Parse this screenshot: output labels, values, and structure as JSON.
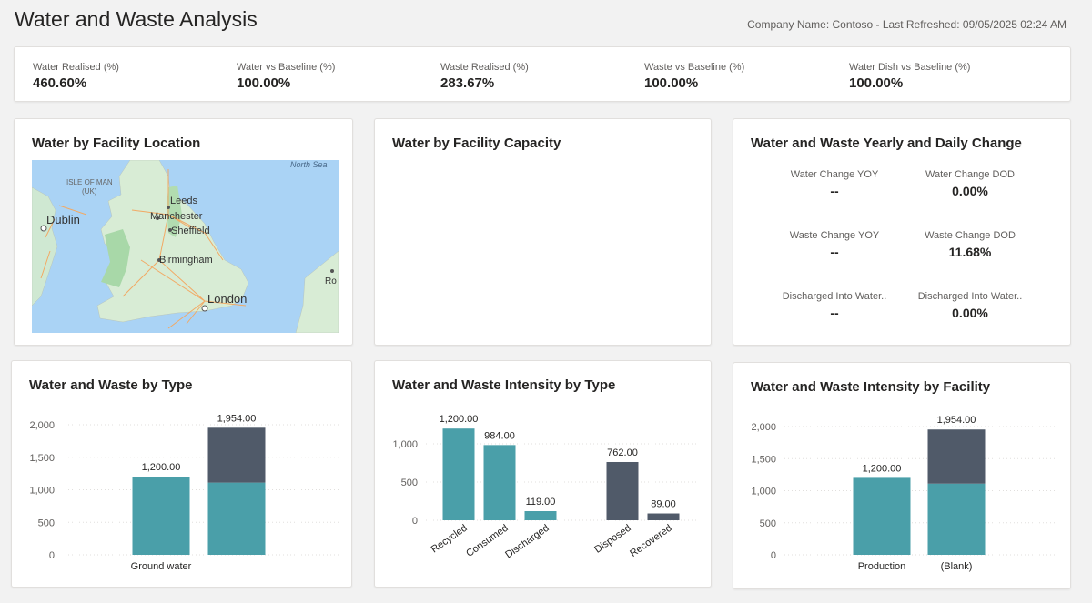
{
  "header": {
    "title": "Water and Waste Analysis",
    "meta": "Company Name: Contoso - Last Refreshed: 09/05/2025 02:24 AM"
  },
  "kpis": [
    {
      "label": "Water Realised (%)",
      "value": "460.60%"
    },
    {
      "label": "Water vs Baseline (%)",
      "value": "100.00%"
    },
    {
      "label": "Waste Realised (%)",
      "value": "283.67%"
    },
    {
      "label": "Waste vs Baseline (%)",
      "value": "100.00%"
    },
    {
      "label": "Water Dish vs Baseline (%)",
      "value": "100.00%"
    }
  ],
  "map_card": {
    "title": "Water by Facility Location",
    "labels": {
      "north_sea": "North Sea",
      "isle_of_man_1": "ISLE OF MAN",
      "isle_of_man_2": "(UK)",
      "dublin": "Dublin",
      "leeds": "Leeds",
      "manchester": "Manchester",
      "sheffield": "Sheffield",
      "birmingham": "Birmingham",
      "london": "London",
      "ro": "Ro"
    }
  },
  "capacity_card": {
    "title": "Water by Facility Capacity"
  },
  "change_card": {
    "title": "Water and Waste Yearly and Daily Change",
    "items": [
      {
        "label": "Water Change YOY",
        "value": "--"
      },
      {
        "label": "Water Change DOD",
        "value": "0.00%"
      },
      {
        "label": "Waste Change YOY",
        "value": "--"
      },
      {
        "label": "Waste Change DOD",
        "value": "11.68%"
      },
      {
        "label": "Discharged Into Water..",
        "value": "--"
      },
      {
        "label": "Discharged Into Water..",
        "value": "0.00%"
      }
    ]
  },
  "colors": {
    "teal": "#4a9fa9",
    "slate": "#505a69",
    "grid": "#e1dfdd"
  },
  "chart_data": [
    {
      "type": "bar",
      "title": "Water and Waste by Type",
      "ylim": [
        0,
        2000
      ],
      "yticks": [
        "0",
        "500",
        "1,000",
        "1,500",
        "2,000"
      ],
      "bars": [
        {
          "category": "Ground water",
          "segments": [
            1200
          ],
          "label": "1,200.00"
        },
        {
          "category": "",
          "segments": [
            1110,
            844
          ],
          "label": "1,954.00"
        }
      ]
    },
    {
      "type": "bar",
      "title": "Water and Waste Intensity by Type",
      "ylim": [
        0,
        1250
      ],
      "yticks": [
        "0",
        "500",
        "1,000"
      ],
      "bars": [
        {
          "category": "Recycled",
          "value": 1200,
          "label": "1,200.00",
          "color": "teal"
        },
        {
          "category": "Consumed",
          "value": 984,
          "label": "984.00",
          "color": "teal"
        },
        {
          "category": "Discharged",
          "value": 119,
          "label": "119.00",
          "color": "teal"
        },
        {
          "category": "Disposed",
          "value": 762,
          "label": "762.00",
          "color": "slate"
        },
        {
          "category": "Recovered",
          "value": 89,
          "label": "89.00",
          "color": "slate"
        }
      ]
    },
    {
      "type": "bar",
      "title": "Water and Waste Intensity by Facility",
      "ylim": [
        0,
        2000
      ],
      "yticks": [
        "0",
        "500",
        "1,000",
        "1,500",
        "2,000"
      ],
      "bars": [
        {
          "category": "Production",
          "segments": [
            1200
          ],
          "label": "1,200.00"
        },
        {
          "category": "(Blank)",
          "segments": [
            1110,
            844
          ],
          "label": "1,954.00"
        }
      ]
    }
  ]
}
